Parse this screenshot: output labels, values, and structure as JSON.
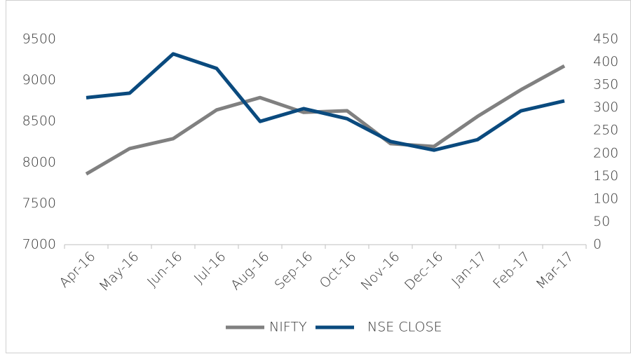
{
  "chart_data": {
    "type": "line",
    "categories": [
      "Apr-16",
      "May-16",
      "Jun-16",
      "Jul-16",
      "Aug-16",
      "Sep-16",
      "Oct-16",
      "Nov-16",
      "Dec-16",
      "Jan-17",
      "Feb-17",
      "Mar-17"
    ],
    "series": [
      {
        "name": "NIFTY",
        "color": "#808080",
        "values": [
          7860,
          8170,
          8290,
          8640,
          8790,
          8610,
          8630,
          8230,
          8195,
          8560,
          8885,
          9175
        ]
      },
      {
        "name": "NSE CLOSE",
        "color": "#0a4a7e",
        "axis": "y2",
        "values": [
          322,
          332,
          418,
          386,
          270,
          298,
          276,
          226,
          207,
          230,
          293,
          315
        ]
      }
    ],
    "ylim": [
      7000,
      9500
    ],
    "yticks": [
      7000,
      7500,
      8000,
      8500,
      9000,
      9500
    ],
    "y2lim": [
      0,
      450
    ],
    "y2ticks": [
      0,
      50,
      100,
      150,
      200,
      250,
      300,
      350,
      400,
      450
    ],
    "grid": false,
    "legend": "bottom"
  }
}
